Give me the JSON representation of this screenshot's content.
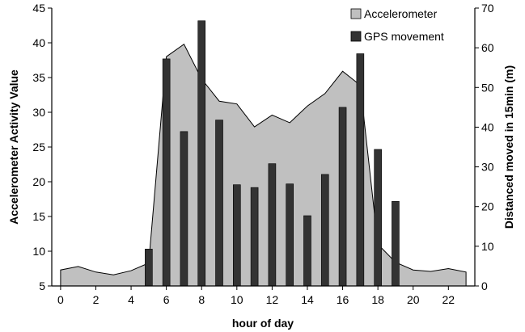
{
  "chart_data": {
    "type": "bar+area",
    "xlabel": "hour of day",
    "ylabel_left": "Accelerometer Activity Value",
    "ylabel_right": "Distanced moved in 15min (m)",
    "x_ticks": [
      "0",
      "2",
      "4",
      "6",
      "8",
      "10",
      "12",
      "14",
      "16",
      "18",
      "20",
      "22"
    ],
    "y_left_ticks": [
      "5",
      "10",
      "15",
      "20",
      "25",
      "30",
      "35",
      "40",
      "45"
    ],
    "y_right_ticks": [
      "0",
      "10",
      "20",
      "30",
      "40",
      "50",
      "60",
      "70"
    ],
    "ylim_left": [
      5,
      45
    ],
    "ylim_right": [
      0,
      70
    ],
    "xlim": [
      -0.5,
      23.5
    ],
    "legend_position": "top-right",
    "grid": false,
    "series": [
      {
        "name": "Accelerometer",
        "type": "area",
        "axis": "left",
        "color": "#c0c0c0",
        "x": [
          0,
          1,
          2,
          3,
          4,
          5,
          6,
          7,
          8,
          9,
          10,
          11,
          12,
          13,
          14,
          15,
          16,
          17,
          18,
          19,
          20,
          21,
          22,
          23
        ],
        "values": [
          7.3,
          7.8,
          7.0,
          6.6,
          7.2,
          8.3,
          38.0,
          39.8,
          34.8,
          31.6,
          31.2,
          27.9,
          29.6,
          28.5,
          30.9,
          32.7,
          35.9,
          33.9,
          11.0,
          8.4,
          7.3,
          7.1,
          7.5,
          7.0
        ]
      },
      {
        "name": "GPS movement",
        "type": "bar",
        "axis": "right",
        "color": "#333333",
        "x": [
          5,
          6,
          7,
          8,
          9,
          10,
          11,
          12,
          13,
          14,
          15,
          16,
          17,
          18,
          19
        ],
        "values": [
          9.3,
          57.2,
          38.9,
          66.8,
          41.8,
          25.5,
          24.8,
          30.8,
          25.7,
          17.7,
          28.1,
          45.0,
          58.5,
          34.4,
          21.3
        ]
      }
    ]
  }
}
